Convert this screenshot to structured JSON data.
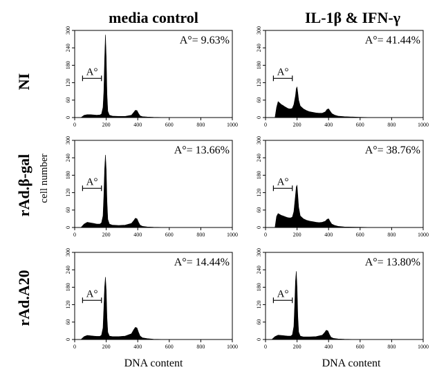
{
  "figure": {
    "column_titles": [
      "media control",
      "IL-1β & IFN-γ"
    ],
    "row_titles": [
      "NI",
      "rAd.β-gal",
      "rAd.A20"
    ],
    "ylabel": "cell number",
    "xlabel": "DNA content",
    "gate_label": "A°"
  },
  "chart_data": [
    {
      "type": "area",
      "row": "NI",
      "column": "media control",
      "annotation": "A°= 9.63%",
      "xlim": [
        0,
        1000
      ],
      "ylim": [
        0,
        300
      ],
      "xticks": [
        0,
        200,
        400,
        600,
        800,
        1000
      ],
      "yticks": [
        0,
        60,
        120,
        180,
        240,
        300
      ],
      "gate": [
        50,
        170
      ],
      "gate_y": 135,
      "series": [
        {
          "x": [
            0,
            40,
            60,
            80,
            100,
            120,
            140,
            160,
            170,
            180,
            185,
            190,
            195,
            200,
            205,
            210,
            220,
            240,
            280,
            320,
            360,
            375,
            385,
            395,
            405,
            415,
            430,
            460,
            500,
            600,
            700,
            800,
            900,
            1000
          ],
          "y": [
            0,
            0,
            8,
            10,
            10,
            9,
            8,
            9,
            12,
            35,
            90,
            200,
            285,
            210,
            80,
            22,
            8,
            5,
            4,
            4,
            8,
            18,
            25,
            24,
            14,
            6,
            3,
            2,
            1,
            0,
            0,
            0,
            0,
            0
          ]
        }
      ]
    },
    {
      "type": "area",
      "row": "NI",
      "column": "IL-1β & IFN-γ",
      "annotation": "A°= 41.44%",
      "xlim": [
        0,
        1000
      ],
      "ylim": [
        0,
        300
      ],
      "xticks": [
        0,
        200,
        400,
        600,
        800,
        1000
      ],
      "yticks": [
        0,
        60,
        120,
        180,
        240,
        300
      ],
      "gate": [
        50,
        170
      ],
      "gate_y": 135,
      "series": [
        {
          "x": [
            0,
            60,
            70,
            80,
            90,
            100,
            110,
            120,
            130,
            140,
            150,
            160,
            170,
            180,
            190,
            195,
            200,
            205,
            210,
            220,
            240,
            260,
            280,
            300,
            320,
            340,
            360,
            380,
            390,
            400,
            410,
            420,
            440,
            460,
            500,
            600,
            700,
            800,
            900,
            1000
          ],
          "y": [
            0,
            0,
            35,
            55,
            50,
            45,
            42,
            38,
            35,
            32,
            30,
            30,
            32,
            45,
            75,
            100,
            105,
            85,
            60,
            40,
            30,
            24,
            20,
            18,
            16,
            15,
            15,
            20,
            28,
            30,
            22,
            14,
            8,
            5,
            3,
            1,
            0,
            0,
            0,
            0
          ]
        }
      ]
    },
    {
      "type": "area",
      "row": "rAd.β-gal",
      "column": "media control",
      "annotation": "A°= 13.66%",
      "xlim": [
        0,
        1000
      ],
      "ylim": [
        0,
        300
      ],
      "xticks": [
        0,
        200,
        400,
        600,
        800,
        1000
      ],
      "yticks": [
        0,
        60,
        120,
        180,
        240,
        300
      ],
      "gate": [
        50,
        170
      ],
      "gate_y": 135,
      "series": [
        {
          "x": [
            0,
            40,
            60,
            80,
            100,
            120,
            140,
            160,
            170,
            180,
            185,
            190,
            195,
            200,
            205,
            210,
            220,
            240,
            280,
            320,
            360,
            375,
            385,
            395,
            405,
            415,
            430,
            460,
            500,
            600,
            700,
            800,
            900,
            1000
          ],
          "y": [
            0,
            0,
            12,
            18,
            16,
            14,
            12,
            12,
            16,
            40,
            110,
            200,
            250,
            200,
            90,
            28,
            12,
            8,
            7,
            8,
            14,
            24,
            32,
            30,
            18,
            8,
            4,
            2,
            1,
            0,
            0,
            0,
            0,
            0
          ]
        }
      ]
    },
    {
      "type": "area",
      "row": "rAd.β-gal",
      "column": "IL-1β & IFN-γ",
      "annotation": "A°= 38.76%",
      "xlim": [
        0,
        1000
      ],
      "ylim": [
        0,
        300
      ],
      "xticks": [
        0,
        200,
        400,
        600,
        800,
        1000
      ],
      "yticks": [
        0,
        60,
        120,
        180,
        240,
        300
      ],
      "gate": [
        50,
        170
      ],
      "gate_y": 135,
      "series": [
        {
          "x": [
            0,
            60,
            70,
            80,
            90,
            100,
            110,
            120,
            130,
            140,
            150,
            160,
            170,
            180,
            190,
            195,
            200,
            205,
            210,
            220,
            240,
            260,
            280,
            300,
            320,
            340,
            360,
            380,
            390,
            400,
            410,
            420,
            440,
            460,
            500,
            600,
            700,
            800,
            900,
            1000
          ],
          "y": [
            0,
            0,
            38,
            48,
            45,
            42,
            40,
            38,
            36,
            34,
            33,
            33,
            36,
            55,
            110,
            140,
            145,
            110,
            70,
            40,
            30,
            25,
            22,
            20,
            18,
            17,
            18,
            22,
            28,
            30,
            20,
            12,
            7,
            4,
            2,
            1,
            0,
            0,
            0,
            0
          ]
        }
      ]
    },
    {
      "type": "area",
      "row": "rAd.A20",
      "column": "media control",
      "annotation": "A°= 14.44%",
      "xlim": [
        0,
        1000
      ],
      "ylim": [
        0,
        300
      ],
      "xticks": [
        0,
        200,
        400,
        600,
        800,
        1000
      ],
      "yticks": [
        0,
        60,
        120,
        180,
        240,
        300
      ],
      "gate": [
        50,
        170
      ],
      "gate_y": 135,
      "series": [
        {
          "x": [
            0,
            40,
            60,
            80,
            100,
            120,
            140,
            160,
            170,
            180,
            185,
            190,
            195,
            200,
            205,
            210,
            220,
            240,
            280,
            320,
            360,
            375,
            385,
            395,
            405,
            415,
            430,
            460,
            500,
            600,
            700,
            800,
            900,
            1000
          ],
          "y": [
            0,
            0,
            10,
            14,
            13,
            12,
            11,
            11,
            15,
            40,
            110,
            180,
            215,
            170,
            75,
            25,
            12,
            10,
            10,
            12,
            20,
            34,
            42,
            40,
            25,
            12,
            6,
            3,
            1,
            0,
            0,
            0,
            0,
            0
          ]
        }
      ]
    },
    {
      "type": "area",
      "row": "rAd.A20",
      "column": "IL-1β & IFN-γ",
      "annotation": "A°= 13.80%",
      "xlim": [
        0,
        1000
      ],
      "ylim": [
        0,
        300
      ],
      "xticks": [
        0,
        200,
        400,
        600,
        800,
        1000
      ],
      "yticks": [
        0,
        60,
        120,
        180,
        240,
        300
      ],
      "gate": [
        50,
        170
      ],
      "gate_y": 135,
      "series": [
        {
          "x": [
            0,
            40,
            60,
            80,
            100,
            120,
            140,
            160,
            170,
            180,
            185,
            190,
            195,
            200,
            205,
            210,
            220,
            240,
            280,
            320,
            360,
            375,
            385,
            395,
            405,
            415,
            430,
            460,
            500,
            600,
            700,
            800,
            900,
            1000
          ],
          "y": [
            0,
            0,
            10,
            15,
            14,
            13,
            12,
            12,
            16,
            45,
            120,
            200,
            235,
            180,
            80,
            26,
            12,
            9,
            9,
            10,
            15,
            24,
            32,
            30,
            18,
            8,
            4,
            2,
            1,
            0,
            0,
            0,
            0,
            0
          ]
        }
      ]
    }
  ]
}
